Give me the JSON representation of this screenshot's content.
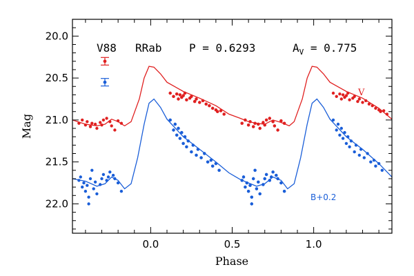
{
  "chart_data": {
    "type": "scatter",
    "header": {
      "star": "V88",
      "class": "RRab",
      "period": "P = 0.6293",
      "amp_prefix": "A",
      "amp_sub": "V",
      "amp_value": " = 0.775"
    },
    "xlabel": "Phase",
    "ylabel": "Mag",
    "xlim": [
      -0.48,
      1.48
    ],
    "ylim": [
      22.35,
      19.8
    ],
    "x_ticks": [
      {
        "value": 0.0,
        "label": "0.0"
      },
      {
        "value": 0.5,
        "label": "0.5"
      },
      {
        "value": 1.0,
        "label": "1.0"
      }
    ],
    "y_ticks": [
      {
        "value": 20.0,
        "label": "20.0"
      },
      {
        "value": 20.5,
        "label": "20.5"
      },
      {
        "value": 21.0,
        "label": "21.0"
      },
      {
        "value": 21.5,
        "label": "21.5"
      },
      {
        "value": 22.0,
        "label": "22.0"
      }
    ],
    "series": [
      {
        "name": "V",
        "color": "#e02020",
        "error_bar": {
          "mag": 20.3,
          "err": 0.045
        },
        "template": [
          [
            -0.48,
            21.0
          ],
          [
            -0.4,
            21.05
          ],
          [
            -0.33,
            21.07
          ],
          [
            -0.28,
            21.05
          ],
          [
            -0.24,
            20.99
          ],
          [
            -0.2,
            21.02
          ],
          [
            -0.16,
            21.07
          ],
          [
            -0.12,
            21.02
          ],
          [
            -0.07,
            20.75
          ],
          [
            -0.04,
            20.5
          ],
          [
            -0.01,
            20.36
          ],
          [
            0.02,
            20.37
          ],
          [
            0.06,
            20.45
          ],
          [
            0.1,
            20.55
          ],
          [
            0.2,
            20.66
          ],
          [
            0.3,
            20.74
          ],
          [
            0.4,
            20.83
          ],
          [
            0.48,
            20.93
          ],
          [
            0.55,
            20.98
          ],
          [
            0.6,
            21.02
          ],
          [
            0.65,
            21.04
          ],
          [
            0.7,
            21.05
          ],
          [
            0.75,
            21.0
          ],
          [
            0.8,
            21.03
          ],
          [
            0.85,
            21.07
          ],
          [
            0.88,
            21.02
          ],
          [
            0.93,
            20.75
          ],
          [
            0.96,
            20.5
          ],
          [
            0.99,
            20.36
          ],
          [
            1.02,
            20.37
          ],
          [
            1.06,
            20.45
          ],
          [
            1.1,
            20.55
          ],
          [
            1.2,
            20.66
          ],
          [
            1.3,
            20.74
          ],
          [
            1.4,
            20.86
          ],
          [
            1.48,
            20.99
          ]
        ],
        "points": [
          [
            0.12,
            20.68
          ],
          [
            0.14,
            20.72
          ],
          [
            0.16,
            20.69
          ],
          [
            0.17,
            20.75
          ],
          [
            0.18,
            20.7
          ],
          [
            0.19,
            20.73
          ],
          [
            0.2,
            20.71
          ],
          [
            0.21,
            20.68
          ],
          [
            0.22,
            20.76
          ],
          [
            0.24,
            20.74
          ],
          [
            0.25,
            20.72
          ],
          [
            0.27,
            20.78
          ],
          [
            0.28,
            20.75
          ],
          [
            0.3,
            20.79
          ],
          [
            0.32,
            20.77
          ],
          [
            0.34,
            20.81
          ],
          [
            0.36,
            20.83
          ],
          [
            0.38,
            20.86
          ],
          [
            0.4,
            20.88
          ],
          [
            0.41,
            20.9
          ],
          [
            0.43,
            20.89
          ],
          [
            0.45,
            20.93
          ],
          [
            0.56,
            21.04
          ],
          [
            0.58,
            21.0
          ],
          [
            0.6,
            21.06
          ],
          [
            0.61,
            21.02
          ],
          [
            0.63,
            21.08
          ],
          [
            0.64,
            21.04
          ],
          [
            0.66,
            21.05
          ],
          [
            0.67,
            21.1
          ],
          [
            0.69,
            21.03
          ],
          [
            0.7,
            21.06
          ],
          [
            0.71,
            21.0
          ],
          [
            0.73,
            20.98
          ],
          [
            0.75,
            21.02
          ],
          [
            0.76,
            21.07
          ],
          [
            0.78,
            21.12
          ],
          [
            0.8,
            21.01
          ],
          [
            0.82,
            21.04
          ]
        ]
      },
      {
        "name": "B+0.2",
        "color": "#1a5ed8",
        "error_bar": {
          "mag": 20.55,
          "err": 0.045
        },
        "template": [
          [
            -0.48,
            21.7
          ],
          [
            -0.4,
            21.73
          ],
          [
            -0.33,
            21.79
          ],
          [
            -0.28,
            21.76
          ],
          [
            -0.24,
            21.68
          ],
          [
            -0.2,
            21.72
          ],
          [
            -0.16,
            21.82
          ],
          [
            -0.12,
            21.76
          ],
          [
            -0.08,
            21.45
          ],
          [
            -0.04,
            21.05
          ],
          [
            -0.01,
            20.8
          ],
          [
            0.02,
            20.75
          ],
          [
            0.06,
            20.85
          ],
          [
            0.1,
            20.99
          ],
          [
            0.2,
            21.2
          ],
          [
            0.3,
            21.35
          ],
          [
            0.4,
            21.5
          ],
          [
            0.48,
            21.63
          ],
          [
            0.55,
            21.71
          ],
          [
            0.6,
            21.75
          ],
          [
            0.65,
            21.79
          ],
          [
            0.7,
            21.76
          ],
          [
            0.75,
            21.68
          ],
          [
            0.8,
            21.72
          ],
          [
            0.84,
            21.82
          ],
          [
            0.88,
            21.76
          ],
          [
            0.92,
            21.45
          ],
          [
            0.96,
            21.05
          ],
          [
            0.99,
            20.8
          ],
          [
            1.02,
            20.75
          ],
          [
            1.06,
            20.85
          ],
          [
            1.1,
            20.99
          ],
          [
            1.2,
            21.2
          ],
          [
            1.3,
            21.35
          ],
          [
            1.4,
            21.52
          ],
          [
            1.48,
            21.68
          ]
        ],
        "points": [
          [
            0.12,
            21.0
          ],
          [
            0.14,
            21.12
          ],
          [
            0.15,
            21.05
          ],
          [
            0.16,
            21.18
          ],
          [
            0.17,
            21.1
          ],
          [
            0.18,
            21.22
          ],
          [
            0.19,
            21.15
          ],
          [
            0.2,
            21.28
          ],
          [
            0.21,
            21.2
          ],
          [
            0.22,
            21.32
          ],
          [
            0.23,
            21.25
          ],
          [
            0.25,
            21.38
          ],
          [
            0.26,
            21.3
          ],
          [
            0.28,
            21.42
          ],
          [
            0.29,
            21.35
          ],
          [
            0.31,
            21.45
          ],
          [
            0.33,
            21.4
          ],
          [
            0.35,
            21.5
          ],
          [
            0.37,
            21.48
          ],
          [
            0.38,
            21.55
          ],
          [
            0.4,
            21.52
          ],
          [
            0.42,
            21.6
          ],
          [
            0.56,
            21.72
          ],
          [
            0.57,
            21.68
          ],
          [
            0.58,
            21.8
          ],
          [
            0.59,
            21.75
          ],
          [
            0.6,
            21.85
          ],
          [
            0.61,
            21.78
          ],
          [
            0.62,
            21.92
          ],
          [
            0.63,
            21.7
          ],
          [
            0.64,
            21.6
          ],
          [
            0.65,
            21.82
          ],
          [
            0.66,
            21.74
          ],
          [
            0.67,
            21.88
          ],
          [
            0.69,
            21.77
          ],
          [
            0.7,
            21.7
          ],
          [
            0.71,
            21.65
          ],
          [
            0.73,
            21.72
          ],
          [
            0.74,
            21.68
          ],
          [
            0.75,
            21.62
          ],
          [
            0.77,
            21.66
          ],
          [
            0.78,
            21.7
          ],
          [
            0.8,
            21.75
          ],
          [
            0.82,
            21.85
          ],
          [
            0.62,
            22.0
          ]
        ]
      }
    ]
  }
}
